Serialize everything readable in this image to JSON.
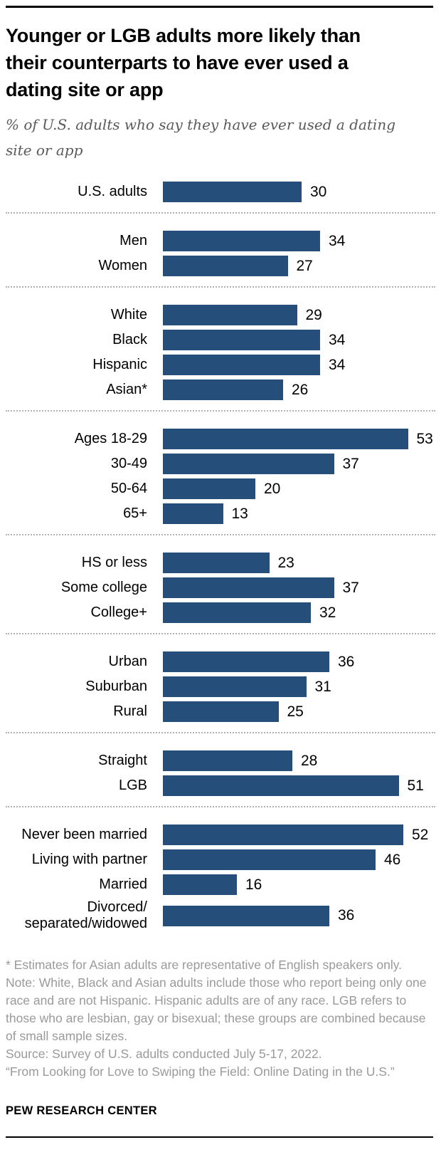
{
  "header": {
    "title_lines": [
      "Younger or LGB adults more likely than",
      "their counterparts to have ever used a",
      "dating site or app"
    ],
    "subtitle_lines": [
      "% of U.S. adults who say they have ever used a dating",
      "site or app"
    ]
  },
  "chart_data": {
    "type": "bar",
    "orientation": "horizontal",
    "unit": "%",
    "bar_color": "#254e7b",
    "xlim": [
      0,
      58
    ],
    "value_labels": "end-of-bar",
    "grid": false,
    "legend": false,
    "groups": [
      {
        "rows": [
          {
            "label": "U.S. adults",
            "value": 30
          }
        ]
      },
      {
        "rows": [
          {
            "label": "Men",
            "value": 34
          },
          {
            "label": "Women",
            "value": 27
          }
        ]
      },
      {
        "rows": [
          {
            "label": "White",
            "value": 29
          },
          {
            "label": "Black",
            "value": 34
          },
          {
            "label": "Hispanic",
            "value": 34
          },
          {
            "label": "Asian*",
            "value": 26
          }
        ]
      },
      {
        "rows": [
          {
            "label": "Ages 18-29",
            "value": 53
          },
          {
            "label": "30-49",
            "value": 37
          },
          {
            "label": "50-64",
            "value": 20
          },
          {
            "label": "65+",
            "value": 13
          }
        ]
      },
      {
        "rows": [
          {
            "label": "HS or less",
            "value": 23
          },
          {
            "label": "Some college",
            "value": 37
          },
          {
            "label": "College+",
            "value": 32
          }
        ]
      },
      {
        "rows": [
          {
            "label": "Urban",
            "value": 36
          },
          {
            "label": "Suburban",
            "value": 31
          },
          {
            "label": "Rural",
            "value": 25
          }
        ]
      },
      {
        "rows": [
          {
            "label": "Straight",
            "value": 28
          },
          {
            "label": "LGB",
            "value": 51
          }
        ]
      },
      {
        "rows": [
          {
            "label": "Never been married",
            "value": 52
          },
          {
            "label": "Living with partner",
            "value": 46
          },
          {
            "label": "Married",
            "value": 16
          },
          {
            "label": "Divorced/\nseparated/widowed",
            "value": 36
          }
        ]
      }
    ]
  },
  "footer": {
    "notes": [
      "* Estimates for Asian adults are representative of English speakers only.",
      "Note: White, Black and Asian adults include those who report being only one race and are not Hispanic. Hispanic adults are of any race. LGB refers to those who are lesbian, gay or bisexual; these groups are combined because of small sample sizes.",
      "Source: Survey of U.S. adults conducted July 5-17, 2022.",
      "“From Looking for Love to Swiping the Field: Online Dating in the U.S.”"
    ],
    "brand": "PEW RESEARCH CENTER"
  }
}
